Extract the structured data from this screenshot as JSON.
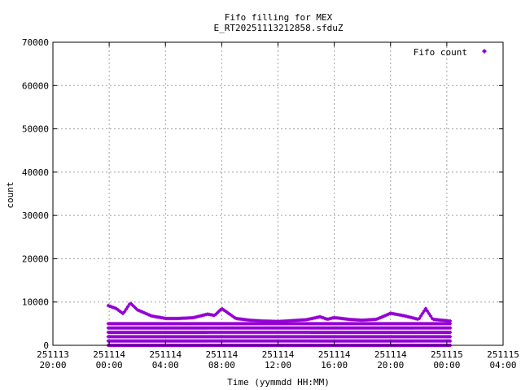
{
  "chart_data": {
    "type": "scatter",
    "title": [
      "Fifo filling for MEX",
      "E_RT20251113212858.sfduZ"
    ],
    "xlabel": "Time (yymmdd HH:MM)",
    "ylabel": "count",
    "xlim": [
      "2025-11-13 20:00",
      "2025-11-15 04:00"
    ],
    "ylim": [
      0,
      70000
    ],
    "x_ticks": [
      {
        "date": "251113",
        "time": "20:00"
      },
      {
        "date": "251114",
        "time": "00:00"
      },
      {
        "date": "251114",
        "time": "04:00"
      },
      {
        "date": "251114",
        "time": "08:00"
      },
      {
        "date": "251114",
        "time": "12:00"
      },
      {
        "date": "251114",
        "time": "16:00"
      },
      {
        "date": "251114",
        "time": "20:00"
      },
      {
        "date": "251115",
        "time": "00:00"
      },
      {
        "date": "251115",
        "time": "04:00"
      }
    ],
    "y_ticks": [
      "0",
      "10000",
      "20000",
      "30000",
      "40000",
      "50000",
      "60000",
      "70000"
    ],
    "grid": true,
    "legend_position": "top-right",
    "series": [
      {
        "name": "Fifo count",
        "color": "#9400d3",
        "marker": "diamond",
        "x_range": [
          "2025-11-13 23:55",
          "2025-11-15 00:15"
        ],
        "levels": [
          0,
          1000,
          2000,
          3000,
          4000,
          5000
        ],
        "upper_envelope": [
          [
            "2025-11-13 23:55",
            9200
          ],
          [
            "2025-11-14 00:30",
            8500
          ],
          [
            "2025-11-14 01:00",
            7300
          ],
          [
            "2025-11-14 01:30",
            9800
          ],
          [
            "2025-11-14 02:00",
            8200
          ],
          [
            "2025-11-14 03:00",
            6800
          ],
          [
            "2025-11-14 04:00",
            6200
          ],
          [
            "2025-11-14 05:00",
            6200
          ],
          [
            "2025-11-14 06:00",
            6400
          ],
          [
            "2025-11-14 07:00",
            7200
          ],
          [
            "2025-11-14 07:30",
            6900
          ],
          [
            "2025-11-14 08:00",
            8500
          ],
          [
            "2025-11-14 09:00",
            6200
          ],
          [
            "2025-11-14 10:00",
            5800
          ],
          [
            "2025-11-14 11:00",
            5600
          ],
          [
            "2025-11-14 12:00",
            5500
          ],
          [
            "2025-11-14 13:00",
            5700
          ],
          [
            "2025-11-14 14:00",
            5900
          ],
          [
            "2025-11-14 15:00",
            6600
          ],
          [
            "2025-11-14 15:30",
            6000
          ],
          [
            "2025-11-14 16:00",
            6400
          ],
          [
            "2025-11-14 17:00",
            6000
          ],
          [
            "2025-11-14 18:00",
            5800
          ],
          [
            "2025-11-14 19:00",
            6000
          ],
          [
            "2025-11-14 20:00",
            7400
          ],
          [
            "2025-11-14 21:00",
            6800
          ],
          [
            "2025-11-14 22:00",
            6000
          ],
          [
            "2025-11-14 22:30",
            8500
          ],
          [
            "2025-11-14 23:00",
            6000
          ],
          [
            "2025-11-15 00:15",
            5600
          ]
        ]
      }
    ]
  }
}
